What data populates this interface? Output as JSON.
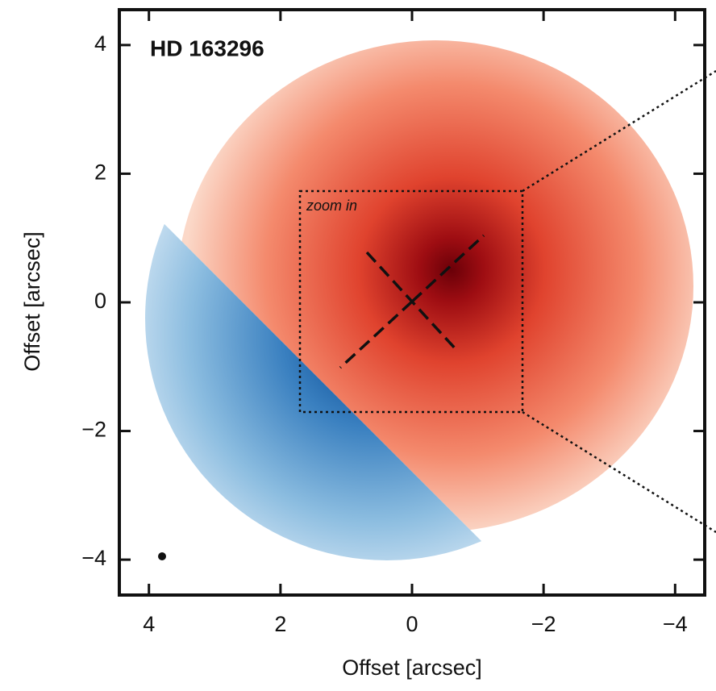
{
  "chart_data": {
    "type": "image",
    "title": "HD 163296",
    "xlabel": "Offset [arcsec]",
    "ylabel": "Offset [arcsec]",
    "annotation": "zoom in",
    "xlim": [
      4.45,
      -4.45
    ],
    "ylim": [
      -4.55,
      4.55
    ],
    "xticks": [
      4,
      2,
      0,
      {
        "value": -2,
        "label": "−2"
      },
      {
        "value": -4,
        "label": "−4"
      }
    ],
    "yticks": [
      {
        "value": -4,
        "label": "−4"
      },
      {
        "value": -2,
        "label": "−2"
      },
      0,
      2,
      4
    ]
  }
}
